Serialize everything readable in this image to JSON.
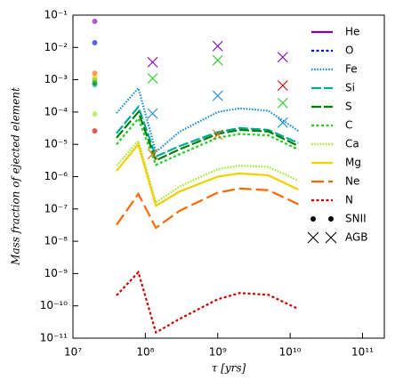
{
  "chart_data": {
    "type": "line",
    "xlabel": "τ [yrs]",
    "ylabel": "Mass fraction of ejected element",
    "xscale": "log",
    "yscale": "log",
    "xlim": [
      10000000.0,
      200000000000.0
    ],
    "ylim": [
      1e-11,
      0.1
    ],
    "xticks": [
      {
        "value": 10000000.0,
        "label": "10⁷"
      },
      {
        "value": 100000000.0,
        "label": "10⁸"
      },
      {
        "value": 1000000000.0,
        "label": "10⁹"
      },
      {
        "value": 10000000000.0,
        "label": "10¹⁰"
      },
      {
        "value": 100000000000.0,
        "label": "10¹¹"
      }
    ],
    "yticks": [
      {
        "value": 1e-11,
        "label": "10⁻¹¹"
      },
      {
        "value": 1e-10,
        "label": "10⁻¹⁰"
      },
      {
        "value": 1e-09,
        "label": "10⁻⁹"
      },
      {
        "value": 1e-08,
        "label": "10⁻⁸"
      },
      {
        "value": 1e-07,
        "label": "10⁻⁷"
      },
      {
        "value": 1e-06,
        "label": "10⁻⁶"
      },
      {
        "value": 1e-05,
        "label": "10⁻⁵"
      },
      {
        "value": 0.0001,
        "label": "10⁻⁴"
      },
      {
        "value": 0.001,
        "label": "10⁻³"
      },
      {
        "value": 0.01,
        "label": "10⁻²"
      },
      {
        "value": 0.1,
        "label": "10⁻¹"
      }
    ],
    "legend": "upper right",
    "x": [
      40000000.0,
      80000000.0,
      140000000.0,
      300000000.0,
      1000000000.0,
      2000000000.0,
      5000000000.0,
      13000000000.0
    ],
    "snii_x": 20000000.0,
    "agb_x": [
      126000000.0,
      1000000000.0,
      7900000000.0
    ],
    "markers": [
      {
        "name": "SNII",
        "shape": "dot"
      },
      {
        "name": "AGB",
        "shape": "cross"
      }
    ],
    "series": [
      {
        "name": "He",
        "color": "#8000c0",
        "dash": "solid",
        "values": [
          null,
          null,
          null,
          null,
          null,
          null,
          null,
          null
        ],
        "snii": 0.064,
        "agb": [
          0.0035,
          0.011,
          0.005
        ]
      },
      {
        "name": "O",
        "color": "#0010d0",
        "dash": "dotted",
        "values": [
          null,
          null,
          null,
          null,
          null,
          null,
          null,
          null
        ],
        "snii": 0.014,
        "agb": [
          null,
          null,
          null
        ]
      },
      {
        "name": "Fe",
        "color": "#1f8fd8",
        "dash": "fine-dotted",
        "values": [
          9.3e-05,
          0.00055,
          5.8e-06,
          2.5e-05,
          0.0001,
          0.00013,
          0.00011,
          2.6e-05
        ],
        "snii": null,
        "agb": [
          9e-05,
          0.00032,
          4.7e-05
        ]
      },
      {
        "name": "Si",
        "color": "#00a898",
        "dash": "dashed",
        "values": [
          2.2e-05,
          0.000145,
          4.2e-06,
          8.9e-06,
          2.4e-05,
          3.2e-05,
          2.8e-05,
          1.1e-05
        ],
        "snii": 0.0007,
        "agb": [
          null,
          null,
          null
        ]
      },
      {
        "name": "S",
        "color": "#008000",
        "dash": "dashed",
        "values": [
          1.6e-05,
          0.0001,
          3.2e-06,
          7.1e-06,
          2.1e-05,
          2.8e-05,
          2.5e-05,
          8.9e-06
        ],
        "snii": 0.0008,
        "agb": [
          null,
          null,
          null
        ]
      },
      {
        "name": "C",
        "color": "#22cc22",
        "dash": "dotted",
        "values": [
          1e-05,
          6.3e-05,
          2.3e-06,
          5e-06,
          1.6e-05,
          2.1e-05,
          1.9e-05,
          6.9e-06
        ],
        "snii": 0.001,
        "agb": [
          0.0011,
          0.004,
          0.00019
        ]
      },
      {
        "name": "Ca",
        "color": "#a0e830",
        "dash": "fine-dotted",
        "values": [
          2.2e-06,
          1.26e-05,
          1.6e-07,
          5e-07,
          1.7e-06,
          2.2e-06,
          2e-06,
          7.6e-07
        ],
        "snii": 8.7e-05,
        "agb": [
          null,
          null,
          null
        ]
      },
      {
        "name": "Mg",
        "color": "#f0d000",
        "dash": "solid",
        "values": [
          1.5e-06,
          1e-05,
          1.26e-07,
          3.5e-07,
          1e-06,
          1.26e-06,
          1.1e-06,
          4e-07
        ],
        "snii": 0.0012,
        "agb": [
          null,
          null,
          null
        ]
      },
      {
        "name": "Ne",
        "color": "#ff6600",
        "dash": "long-dashed",
        "values": [
          3.2e-08,
          2.9e-07,
          2.6e-08,
          8.9e-08,
          3.2e-07,
          4.3e-07,
          3.8e-07,
          1.4e-07
        ],
        "snii": 0.0016,
        "agb": [
          5e-06,
          2e-05,
          null
        ]
      },
      {
        "name": "N",
        "color": "#cc0000",
        "dash": "dotted",
        "values": [
          2.1e-10,
          1.1e-09,
          1.5e-11,
          4e-11,
          1.6e-10,
          2.5e-10,
          2.2e-10,
          8e-11
        ],
        "snii": 2.6e-05,
        "agb": [
          null,
          null,
          0.00066
        ]
      }
    ]
  }
}
